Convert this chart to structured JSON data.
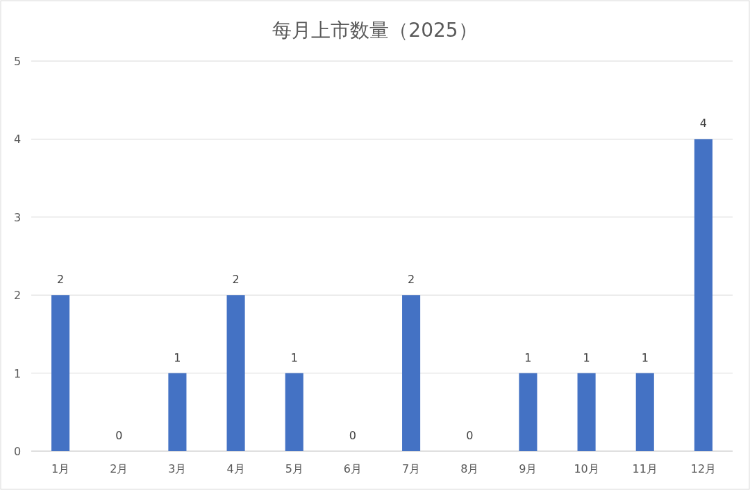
{
  "chart_data": {
    "type": "bar",
    "title": "每月上市数量（2025）",
    "categories": [
      "1月",
      "2月",
      "3月",
      "4月",
      "5月",
      "6月",
      "7月",
      "8月",
      "9月",
      "10月",
      "11月",
      "12月"
    ],
    "values": [
      2,
      0,
      1,
      2,
      1,
      0,
      2,
      0,
      1,
      1,
      1,
      4
    ],
    "color": "#4472c4",
    "ylim": [
      0,
      5
    ],
    "yticks": [
      0,
      1,
      2,
      3,
      4,
      5
    ],
    "grid": "y",
    "data_labels": true
  }
}
